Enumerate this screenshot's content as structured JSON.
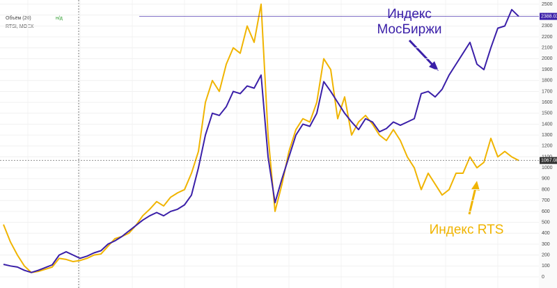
{
  "chart_data": {
    "type": "line",
    "symbol": "RTSI, MOEX",
    "indicators": [
      "Объём (20)",
      "н/д"
    ],
    "ylim": [
      0,
      2500
    ],
    "yticks": [
      0,
      100,
      200,
      300,
      400,
      500,
      600,
      700,
      800,
      900,
      1000,
      1100,
      1200,
      1300,
      1400,
      1500,
      1600,
      1700,
      1800,
      1900,
      2000,
      2100,
      2200,
      2300,
      2400,
      2500
    ],
    "grid": true,
    "series": [
      {
        "name": "Индекс МосБиржи",
        "color": "#3a1fa8",
        "values": [
          115,
          100,
          90,
          60,
          40,
          60,
          85,
          110,
          200,
          230,
          200,
          170,
          190,
          220,
          240,
          300,
          330,
          370,
          420,
          470,
          520,
          560,
          590,
          560,
          600,
          620,
          660,
          750,
          1000,
          1300,
          1500,
          1480,
          1560,
          1700,
          1680,
          1750,
          1730,
          1850,
          1100,
          680,
          900,
          1100,
          1300,
          1400,
          1380,
          1500,
          1790,
          1700,
          1600,
          1500,
          1420,
          1350,
          1450,
          1420,
          1330,
          1360,
          1420,
          1390,
          1420,
          1450,
          1680,
          1700,
          1650,
          1720,
          1850,
          1950,
          2050,
          2150,
          1950,
          1900,
          2100,
          2280,
          2300,
          2450,
          2388.03
        ]
      },
      {
        "name": "Индекс RTS",
        "color": "#f0b400",
        "values": [
          480,
          320,
          200,
          100,
          40,
          50,
          70,
          90,
          170,
          160,
          140,
          150,
          170,
          200,
          210,
          280,
          350,
          370,
          400,
          470,
          560,
          620,
          690,
          650,
          730,
          770,
          800,
          950,
          1150,
          1600,
          1800,
          1700,
          1950,
          2100,
          2050,
          2300,
          2150,
          2500,
          1300,
          600,
          850,
          1150,
          1350,
          1450,
          1420,
          1600,
          2000,
          1900,
          1450,
          1650,
          1300,
          1420,
          1480,
          1400,
          1300,
          1250,
          1350,
          1250,
          1100,
          1000,
          800,
          950,
          850,
          750,
          800,
          950,
          950,
          1100,
          1000,
          1050,
          1270,
          1100,
          1150,
          1100,
          1067.08
        ]
      }
    ]
  }
}
